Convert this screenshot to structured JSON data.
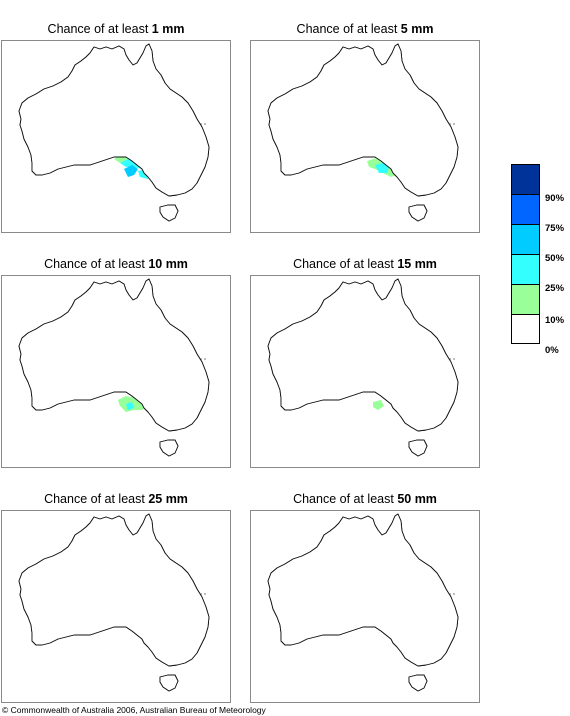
{
  "colors": {
    "c10": "#99ff99",
    "c25": "#33ffff",
    "c50": "#00ccff",
    "c75": "#0066ff",
    "c90": "#003399",
    "c0": "#ffffff"
  },
  "panels": [
    {
      "prefix": "Chance of at least ",
      "amount": "1 mm"
    },
    {
      "prefix": "Chance of at least ",
      "amount": "5 mm"
    },
    {
      "prefix": "Chance of at least ",
      "amount": "10 mm"
    },
    {
      "prefix": "Chance of at least ",
      "amount": "15 mm"
    },
    {
      "prefix": "Chance of at least ",
      "amount": "25 mm"
    },
    {
      "prefix": "Chance of at least ",
      "amount": "50 mm"
    }
  ],
  "legend": {
    "labels": [
      "90%",
      "75%",
      "50%",
      "25%",
      "10%",
      "0%"
    ]
  },
  "copyright": "© Commonwealth of Australia 2006, Australian Bureau of Meteorology"
}
